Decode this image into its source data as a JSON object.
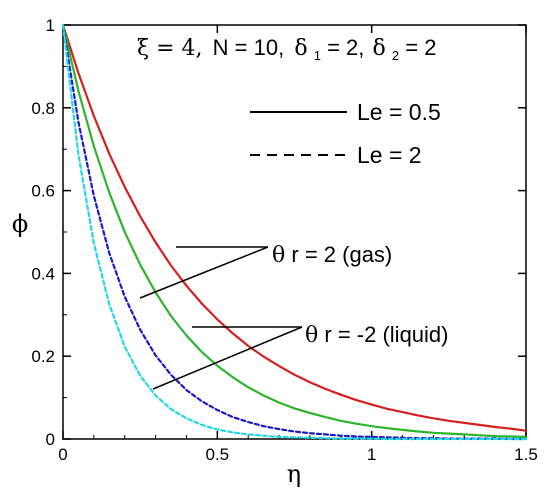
{
  "chart_data": {
    "type": "line",
    "title": "",
    "xlabel": "η",
    "ylabel": "ϕ",
    "xlim": [
      0,
      1.5
    ],
    "ylim": [
      0,
      1
    ],
    "grid": false,
    "x_ticks": [
      "0",
      "0.5",
      "1",
      "1.5"
    ],
    "y_ticks": [
      "0",
      "0.2",
      "0.4",
      "0.6",
      "0.8",
      "1"
    ],
    "parameters": {
      "xi": "ξ = 4,",
      "N": "N = 10,",
      "delta1_symbol": "δ",
      "delta1_sub": "1",
      "delta1_value": " = 2,",
      "delta2_symbol": "δ",
      "delta2_sub": "2",
      "delta2_value": "= 2"
    },
    "legend": {
      "placement": "top-right",
      "solid_label": "Le = 0.5",
      "dashed_label": "Le = 2"
    },
    "annotations": {
      "gas_symbol": "θ",
      "gas_sub": "r",
      "gas_text": " = 2 (gas)",
      "liquid_symbol": "θ",
      "liquid_sub": "r",
      "liquid_text": " = -2 (liquid)"
    },
    "x": [
      0,
      0.05,
      0.1,
      0.15,
      0.2,
      0.25,
      0.3,
      0.35,
      0.4,
      0.45,
      0.5,
      0.55,
      0.6,
      0.65,
      0.7,
      0.75,
      0.8,
      0.85,
      0.9,
      0.95,
      1.0,
      1.05,
      1.1,
      1.15,
      1.2,
      1.25,
      1.3,
      1.35,
      1.4,
      1.45,
      1.5
    ],
    "series": [
      {
        "color": "#d42020",
        "dash": false,
        "values": [
          1.0,
          0.884,
          0.78,
          0.689,
          0.609,
          0.538,
          0.475,
          0.419,
          0.37,
          0.327,
          0.289,
          0.255,
          0.225,
          0.199,
          0.176,
          0.155,
          0.137,
          0.121,
          0.107,
          0.094,
          0.083,
          0.073,
          0.065,
          0.057,
          0.05,
          0.044,
          0.039,
          0.034,
          0.029,
          0.025,
          0.02
        ]
      },
      {
        "color": "#2cb52c",
        "dash": false,
        "values": [
          1.0,
          0.841,
          0.707,
          0.595,
          0.5,
          0.421,
          0.354,
          0.297,
          0.25,
          0.21,
          0.177,
          0.149,
          0.125,
          0.105,
          0.088,
          0.074,
          0.063,
          0.053,
          0.044,
          0.037,
          0.031,
          0.026,
          0.022,
          0.018,
          0.015,
          0.013,
          0.011,
          0.009,
          0.007,
          0.006,
          0.005
        ]
      },
      {
        "color": "#1a1acc",
        "dash": true,
        "values": [
          1.0,
          0.766,
          0.587,
          0.449,
          0.344,
          0.264,
          0.202,
          0.155,
          0.118,
          0.091,
          0.07,
          0.053,
          0.041,
          0.031,
          0.024,
          0.018,
          0.014,
          0.011,
          0.008,
          0.006,
          0.005,
          0.004,
          0.003,
          0.002,
          0.002,
          0.001,
          0.001,
          0.001,
          0.001,
          0.0,
          0.0
        ]
      },
      {
        "color": "#22d8e8",
        "dash": true,
        "values": [
          1.0,
          0.687,
          0.472,
          0.325,
          0.223,
          0.153,
          0.105,
          0.072,
          0.05,
          0.034,
          0.023,
          0.016,
          0.011,
          0.008,
          0.005,
          0.004,
          0.003,
          0.002,
          0.001,
          0.001,
          0.001,
          0.0,
          0.0,
          0.0,
          0.0,
          0.0,
          0.0,
          0.0,
          0.0,
          0.0,
          0.0
        ]
      }
    ]
  }
}
